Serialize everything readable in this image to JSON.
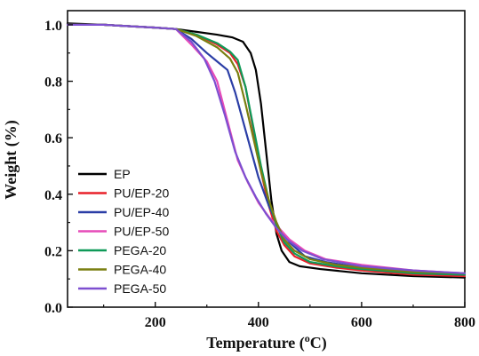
{
  "chart_data": {
    "type": "line",
    "xlabel_prefix": "Temperature (",
    "xlabel_degree": "o",
    "xlabel_suffix": "C)",
    "ylabel": "Weight (%)",
    "xlim": [
      30,
      800
    ],
    "ylim": [
      0.0,
      1.05
    ],
    "x_ticks": [
      200,
      400,
      600,
      800
    ],
    "y_ticks": [
      0.0,
      0.2,
      0.4,
      0.6,
      0.8,
      1.0
    ],
    "x_tick_labels": [
      "200",
      "400",
      "600",
      "800"
    ],
    "y_tick_labels": [
      "0.0",
      "0.2",
      "0.4",
      "0.6",
      "0.8",
      "1.0"
    ],
    "grid": false,
    "legend_position": "left",
    "series": [
      {
        "name": "EP",
        "color": "#000000",
        "points": [
          [
            30,
            1.005
          ],
          [
            100,
            1.0
          ],
          [
            150,
            0.995
          ],
          [
            200,
            0.99
          ],
          [
            240,
            0.985
          ],
          [
            280,
            0.975
          ],
          [
            320,
            0.965
          ],
          [
            350,
            0.955
          ],
          [
            370,
            0.94
          ],
          [
            385,
            0.9
          ],
          [
            395,
            0.84
          ],
          [
            405,
            0.72
          ],
          [
            415,
            0.55
          ],
          [
            425,
            0.38
          ],
          [
            435,
            0.26
          ],
          [
            445,
            0.2
          ],
          [
            460,
            0.16
          ],
          [
            480,
            0.145
          ],
          [
            520,
            0.135
          ],
          [
            600,
            0.12
          ],
          [
            700,
            0.11
          ],
          [
            800,
            0.105
          ]
        ]
      },
      {
        "name": "PU/EP-20",
        "color": "#e8202a",
        "points": [
          [
            30,
            1.0
          ],
          [
            100,
            1.0
          ],
          [
            200,
            0.99
          ],
          [
            240,
            0.985
          ],
          [
            280,
            0.965
          ],
          [
            320,
            0.93
          ],
          [
            345,
            0.9
          ],
          [
            360,
            0.86
          ],
          [
            375,
            0.78
          ],
          [
            390,
            0.63
          ],
          [
            405,
            0.48
          ],
          [
            420,
            0.36
          ],
          [
            435,
            0.27
          ],
          [
            450,
            0.22
          ],
          [
            470,
            0.18
          ],
          [
            500,
            0.155
          ],
          [
            550,
            0.14
          ],
          [
            600,
            0.13
          ],
          [
            700,
            0.115
          ],
          [
            800,
            0.11
          ]
        ]
      },
      {
        "name": "PU/EP-40",
        "color": "#2b3ea6",
        "points": [
          [
            30,
            1.0
          ],
          [
            100,
            1.0
          ],
          [
            200,
            0.99
          ],
          [
            240,
            0.985
          ],
          [
            270,
            0.95
          ],
          [
            300,
            0.9
          ],
          [
            320,
            0.87
          ],
          [
            340,
            0.84
          ],
          [
            355,
            0.76
          ],
          [
            370,
            0.66
          ],
          [
            385,
            0.56
          ],
          [
            400,
            0.46
          ],
          [
            420,
            0.36
          ],
          [
            440,
            0.28
          ],
          [
            460,
            0.23
          ],
          [
            490,
            0.18
          ],
          [
            530,
            0.16
          ],
          [
            600,
            0.14
          ],
          [
            700,
            0.12
          ],
          [
            800,
            0.115
          ]
        ]
      },
      {
        "name": "PU/EP-50",
        "color": "#e64bb9",
        "points": [
          [
            30,
            1.0
          ],
          [
            100,
            1.0
          ],
          [
            200,
            0.99
          ],
          [
            240,
            0.985
          ],
          [
            270,
            0.93
          ],
          [
            300,
            0.87
          ],
          [
            320,
            0.8
          ],
          [
            340,
            0.66
          ],
          [
            360,
            0.52
          ],
          [
            380,
            0.44
          ],
          [
            400,
            0.37
          ],
          [
            420,
            0.32
          ],
          [
            440,
            0.28
          ],
          [
            460,
            0.24
          ],
          [
            490,
            0.2
          ],
          [
            530,
            0.17
          ],
          [
            600,
            0.15
          ],
          [
            700,
            0.13
          ],
          [
            800,
            0.12
          ]
        ]
      },
      {
        "name": "PEGA-20",
        "color": "#0f9a58",
        "points": [
          [
            30,
            1.0
          ],
          [
            100,
            1.0
          ],
          [
            200,
            0.99
          ],
          [
            240,
            0.985
          ],
          [
            280,
            0.965
          ],
          [
            320,
            0.935
          ],
          [
            345,
            0.905
          ],
          [
            360,
            0.875
          ],
          [
            375,
            0.78
          ],
          [
            390,
            0.64
          ],
          [
            405,
            0.5
          ],
          [
            420,
            0.38
          ],
          [
            435,
            0.29
          ],
          [
            450,
            0.23
          ],
          [
            470,
            0.19
          ],
          [
            500,
            0.16
          ],
          [
            550,
            0.145
          ],
          [
            600,
            0.135
          ],
          [
            700,
            0.12
          ],
          [
            800,
            0.115
          ]
        ]
      },
      {
        "name": "PEGA-40",
        "color": "#7a7f10",
        "points": [
          [
            30,
            1.0
          ],
          [
            100,
            1.0
          ],
          [
            200,
            0.99
          ],
          [
            240,
            0.985
          ],
          [
            280,
            0.96
          ],
          [
            320,
            0.92
          ],
          [
            345,
            0.88
          ],
          [
            360,
            0.83
          ],
          [
            375,
            0.72
          ],
          [
            390,
            0.6
          ],
          [
            405,
            0.48
          ],
          [
            420,
            0.38
          ],
          [
            435,
            0.3
          ],
          [
            450,
            0.24
          ],
          [
            470,
            0.2
          ],
          [
            500,
            0.17
          ],
          [
            550,
            0.15
          ],
          [
            600,
            0.14
          ],
          [
            700,
            0.125
          ],
          [
            800,
            0.12
          ]
        ]
      },
      {
        "name": "PEGA-50",
        "color": "#7d4fd0",
        "points": [
          [
            30,
            1.0
          ],
          [
            100,
            1.0
          ],
          [
            200,
            0.99
          ],
          [
            240,
            0.985
          ],
          [
            270,
            0.94
          ],
          [
            295,
            0.88
          ],
          [
            315,
            0.8
          ],
          [
            335,
            0.68
          ],
          [
            355,
            0.55
          ],
          [
            375,
            0.46
          ],
          [
            395,
            0.39
          ],
          [
            415,
            0.33
          ],
          [
            435,
            0.28
          ],
          [
            455,
            0.24
          ],
          [
            485,
            0.2
          ],
          [
            525,
            0.17
          ],
          [
            600,
            0.145
          ],
          [
            700,
            0.13
          ],
          [
            800,
            0.12
          ]
        ]
      }
    ]
  }
}
